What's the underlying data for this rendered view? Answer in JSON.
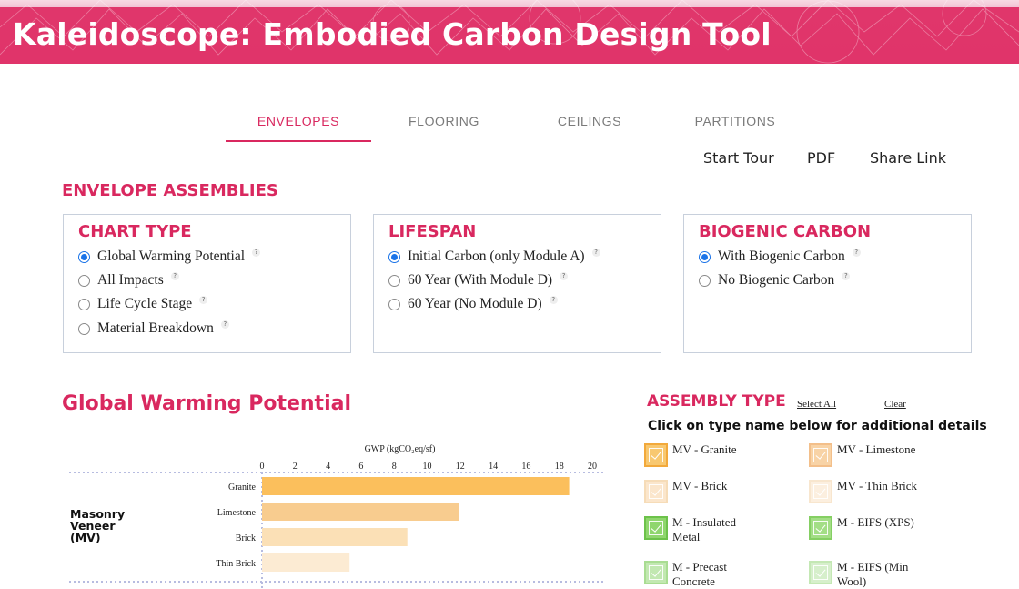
{
  "header": {
    "title": "Kaleidoscope: Embodied Carbon Design Tool"
  },
  "tabs": [
    {
      "label": "ENVELOPES",
      "active": true
    },
    {
      "label": "FLOORING",
      "active": false
    },
    {
      "label": "CEILINGS",
      "active": false
    },
    {
      "label": "PARTITIONS",
      "active": false
    }
  ],
  "links": {
    "start_tour": "Start Tour",
    "pdf": "PDF",
    "share": "Share Link"
  },
  "section": {
    "title": "ENVELOPE ASSEMBLIES"
  },
  "panels": {
    "chart_type": {
      "title": "CHART TYPE",
      "options": [
        {
          "label": "Global Warming Potential",
          "selected": true
        },
        {
          "label": "All Impacts",
          "selected": false
        },
        {
          "label": "Life Cycle Stage",
          "selected": false
        },
        {
          "label": "Material Breakdown",
          "selected": false
        }
      ]
    },
    "lifespan": {
      "title": "LIFESPAN",
      "options": [
        {
          "label": "Initial Carbon (only Module A)",
          "selected": true
        },
        {
          "label": "60 Year (With Module D)",
          "selected": false
        },
        {
          "label": "60 Year (No Module D)",
          "selected": false
        }
      ]
    },
    "biogenic": {
      "title": "BIOGENIC CARBON",
      "options": [
        {
          "label": "With Biogenic Carbon",
          "selected": true
        },
        {
          "label": "No Biogenic Carbon",
          "selected": false
        }
      ]
    },
    "help_glyph": "?"
  },
  "chart_section": {
    "title": "Global Warming Potential"
  },
  "chart_data": {
    "type": "bar",
    "orientation": "horizontal",
    "xlabel": "GWP (kgCO₂eq/sf)",
    "xlim": [
      0,
      20
    ],
    "ticks": [
      "0",
      "2",
      "4",
      "6",
      "8",
      "10",
      "12",
      "14",
      "16",
      "18",
      "20"
    ],
    "group_label": [
      "Masonry",
      "Veneer",
      "(MV)"
    ],
    "categories": [
      "Granite",
      "Limestone",
      "Brick",
      "Thin Brick"
    ],
    "values": [
      18.6,
      11.9,
      8.8,
      5.3
    ],
    "colors": [
      "#fbbf5c",
      "#f8cc8f",
      "#fbe0b6",
      "#fcebd3"
    ]
  },
  "assembly": {
    "title": "ASSEMBLY TYPE",
    "select_all": "Select All",
    "clear": "Clear",
    "hint": "Click on type name below for additional details",
    "items": [
      {
        "label": "MV - Granite",
        "border": "#f2a93b",
        "fill": "#f8c870"
      },
      {
        "label": "MV - Limestone",
        "border": "#f3bf8a",
        "fill": "#f8d3a6"
      },
      {
        "label": "MV - Brick",
        "border": "#f6dcb8",
        "fill": "#fbe6cc"
      },
      {
        "label": "MV - Thin Brick",
        "border": "#f8e6ce",
        "fill": "#fcefdf"
      },
      {
        "label": "M - Insulated Metal",
        "border": "#6cc24a",
        "fill": "#8fd66d"
      },
      {
        "label": "M - EIFS (XPS)",
        "border": "#85cf63",
        "fill": "#a3de86"
      },
      {
        "label": "M - Precast Concrete",
        "border": "#a9dd92",
        "fill": "#c2e8b1"
      },
      {
        "label": "M - EIFS (Min Wool)",
        "border": "#c4e8b4",
        "fill": "#d6efcb"
      }
    ]
  },
  "colors": {
    "accent": "#d9285f",
    "radio_selected": "#1a73e8"
  }
}
